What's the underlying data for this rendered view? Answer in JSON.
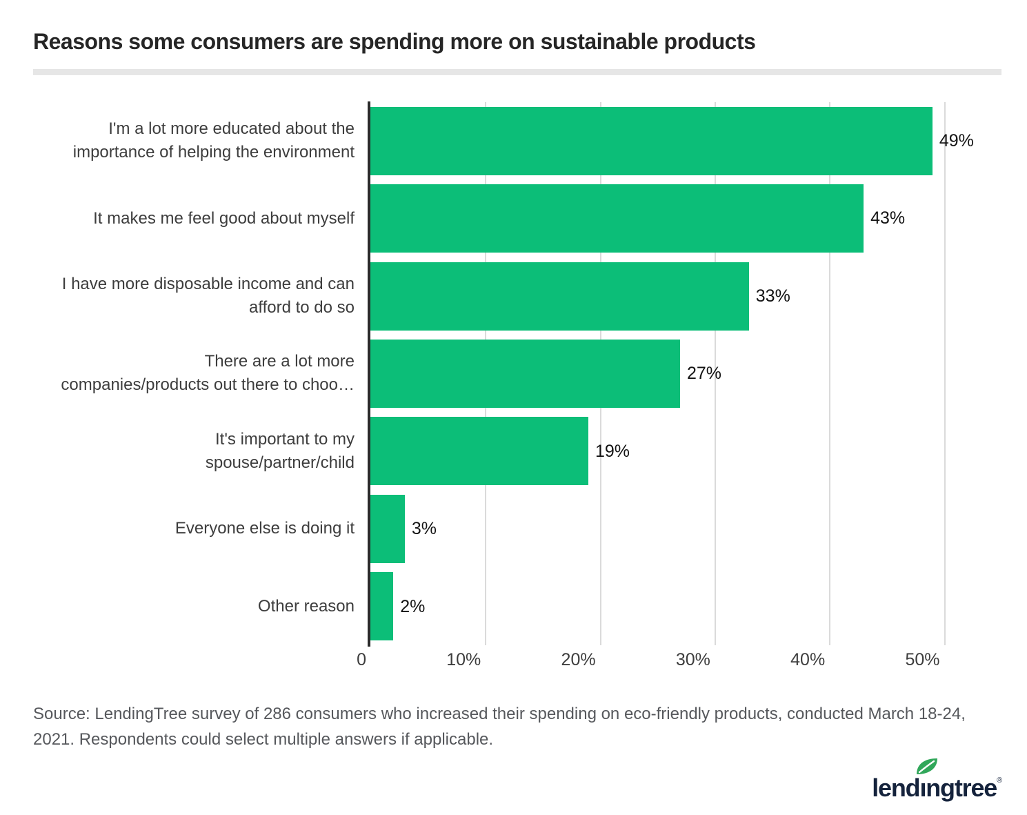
{
  "title": "Reasons some consumers are spending more on sustainable products",
  "chart_data": {
    "type": "bar",
    "orientation": "horizontal",
    "title": "Reasons some consumers are spending more on sustainable products",
    "categories": [
      "I'm a lot more educated about the importance of helping the environment",
      "It makes me feel good about myself",
      "I have more disposable income and can afford to do so",
      "There are a lot more companies/products out there to choo…",
      "It's important to my spouse/partner/child",
      "Everyone else is doing it",
      "Other reason"
    ],
    "category_display_lines": [
      [
        "I'm a lot more educated about the",
        "importance of helping the environment"
      ],
      [
        "It makes me feel good about myself"
      ],
      [
        "I have more disposable income and can",
        "afford to do so"
      ],
      [
        "There are a lot more",
        "companies/products out there to choo…"
      ],
      [
        "It's important to my",
        "spouse/partner/child"
      ],
      [
        "Everyone else is doing it"
      ],
      [
        "Other reason"
      ]
    ],
    "values": [
      49,
      43,
      33,
      27,
      19,
      3,
      2
    ],
    "value_labels": [
      "49%",
      "43%",
      "33%",
      "27%",
      "19%",
      "3%",
      "2%"
    ],
    "x_ticks": [
      {
        "value": 0,
        "label": "0"
      },
      {
        "value": 10,
        "label": "10%"
      },
      {
        "value": 20,
        "label": "20%"
      },
      {
        "value": 30,
        "label": "30%"
      },
      {
        "value": 40,
        "label": "40%"
      },
      {
        "value": 50,
        "label": "50%"
      }
    ],
    "xlim": [
      0,
      54
    ],
    "grid": true,
    "legend": "none",
    "bar_color": "#0cbe78",
    "axis_color": "#2b2b2b",
    "gridline_color": "#dadada"
  },
  "source": {
    "text": "Source: LendingTree survey of 286 consumers who increased their spending on eco-friendly products, conducted March 18-24, 2021. Respondents could select multiple answers if applicable.",
    "lines": [
      "Source: LendingTree survey of 286 consumers who increased their spending on eco-friendly products, conducted March 18-24,",
      "2021. Respondents could select multiple answers if applicable."
    ]
  },
  "logo": {
    "prefix": "lend",
    "dotless_i": "ı",
    "suffix": "ngtree",
    "registered": "®",
    "text_color": "#15233c",
    "leaf_color": "#31a75a"
  }
}
